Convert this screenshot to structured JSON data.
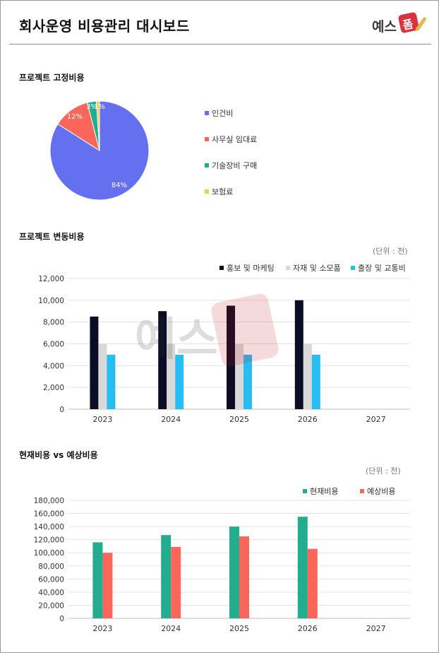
{
  "header": {
    "title": "회사운영 비용관리 대시보드",
    "logo": {
      "text": "예스",
      "box_text": "폼"
    }
  },
  "sections": {
    "fixed": {
      "title": "프로젝트 고정비용"
    },
    "variable": {
      "title": "프로젝트 변동비용",
      "unit": "(단위 : 천)"
    },
    "compare": {
      "title": "현재비용 vs 예상비용",
      "unit": "(단위 : 천)"
    }
  },
  "colors": {
    "pie": [
      "#6470f0",
      "#fa6659",
      "#21ad8e",
      "#f2cf45"
    ],
    "var": [
      "#0c0d24",
      "#d9d9d9",
      "#27bdf2"
    ],
    "cmp": [
      "#21ad8e",
      "#fa6659"
    ]
  },
  "chart_data": [
    {
      "type": "pie",
      "title": "프로젝트 고정비용",
      "labels": [
        "인건비",
        "사무실 임대료",
        "기술장비 구매",
        "보험료"
      ],
      "values": [
        84,
        12,
        3,
        1
      ],
      "data_labels": [
        "84%",
        "12%",
        "3%",
        "1%"
      ],
      "legend": "right"
    },
    {
      "type": "bar",
      "title": "프로젝트 변동비용",
      "categories": [
        "2023",
        "2024",
        "2025",
        "2026",
        "2027"
      ],
      "series": [
        {
          "name": "홍보 및 마케팅",
          "values": [
            8500,
            9000,
            9500,
            10000,
            null
          ]
        },
        {
          "name": "자재 및 소모품",
          "values": [
            6000,
            6000,
            6000,
            6000,
            null
          ]
        },
        {
          "name": "출장 및 교통비",
          "values": [
            5000,
            5000,
            5000,
            5000,
            null
          ]
        }
      ],
      "ylim": [
        0,
        12000
      ],
      "yticks": [
        "0",
        "2,000",
        "4,000",
        "6,000",
        "8,000",
        "10,000",
        "12,000"
      ],
      "grid": true,
      "legend": "top-right"
    },
    {
      "type": "bar",
      "title": "현재비용 vs 예상비용",
      "categories": [
        "2023",
        "2024",
        "2025",
        "2026",
        "2027"
      ],
      "series": [
        {
          "name": "현재비용",
          "values": [
            116000,
            127000,
            140000,
            155000,
            null
          ]
        },
        {
          "name": "예상비용",
          "values": [
            100000,
            109000,
            125000,
            106000,
            null
          ]
        }
      ],
      "ylim": [
        0,
        180000
      ],
      "yticks": [
        "0",
        "20,000",
        "40,000",
        "60,000",
        "80,000",
        "100,000",
        "120,000",
        "140,000",
        "160,000",
        "180,000"
      ],
      "grid": true,
      "legend": "top-right"
    }
  ]
}
